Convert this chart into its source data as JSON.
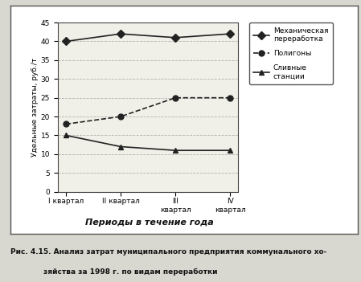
{
  "x_labels": [
    "I квартал",
    "II квартал",
    "III\nквартал",
    "IV\nквартал"
  ],
  "series": [
    {
      "name": "Механическая\nпереработка",
      "values": [
        40,
        42,
        41,
        42
      ],
      "marker": "D",
      "color": "#222222",
      "linestyle": "-"
    },
    {
      "name": "Полигоны",
      "values": [
        18,
        20,
        25,
        25
      ],
      "marker": "o",
      "color": "#222222",
      "linestyle": "--"
    },
    {
      "name": "Сливные\nстанции",
      "values": [
        15,
        12,
        11,
        11
      ],
      "marker": "^",
      "color": "#222222",
      "linestyle": "-"
    }
  ],
  "ylabel": "Удельные затраты, руб./т",
  "xlabel": "Периоды в течение года",
  "ylim": [
    0,
    45
  ],
  "yticks": [
    0,
    5,
    10,
    15,
    20,
    25,
    30,
    35,
    40,
    45
  ],
  "fig_bg": "#d8d8d0",
  "box_bg": "#ffffff",
  "plot_bg": "#f0f0e8",
  "grid_color": "#aaaaaa",
  "caption_line1": "Рис. 4.15. Анализ затрат муниципального предприятия коммунального хо-",
  "caption_line2": "зяйства за 1998 г. по видам переработки"
}
